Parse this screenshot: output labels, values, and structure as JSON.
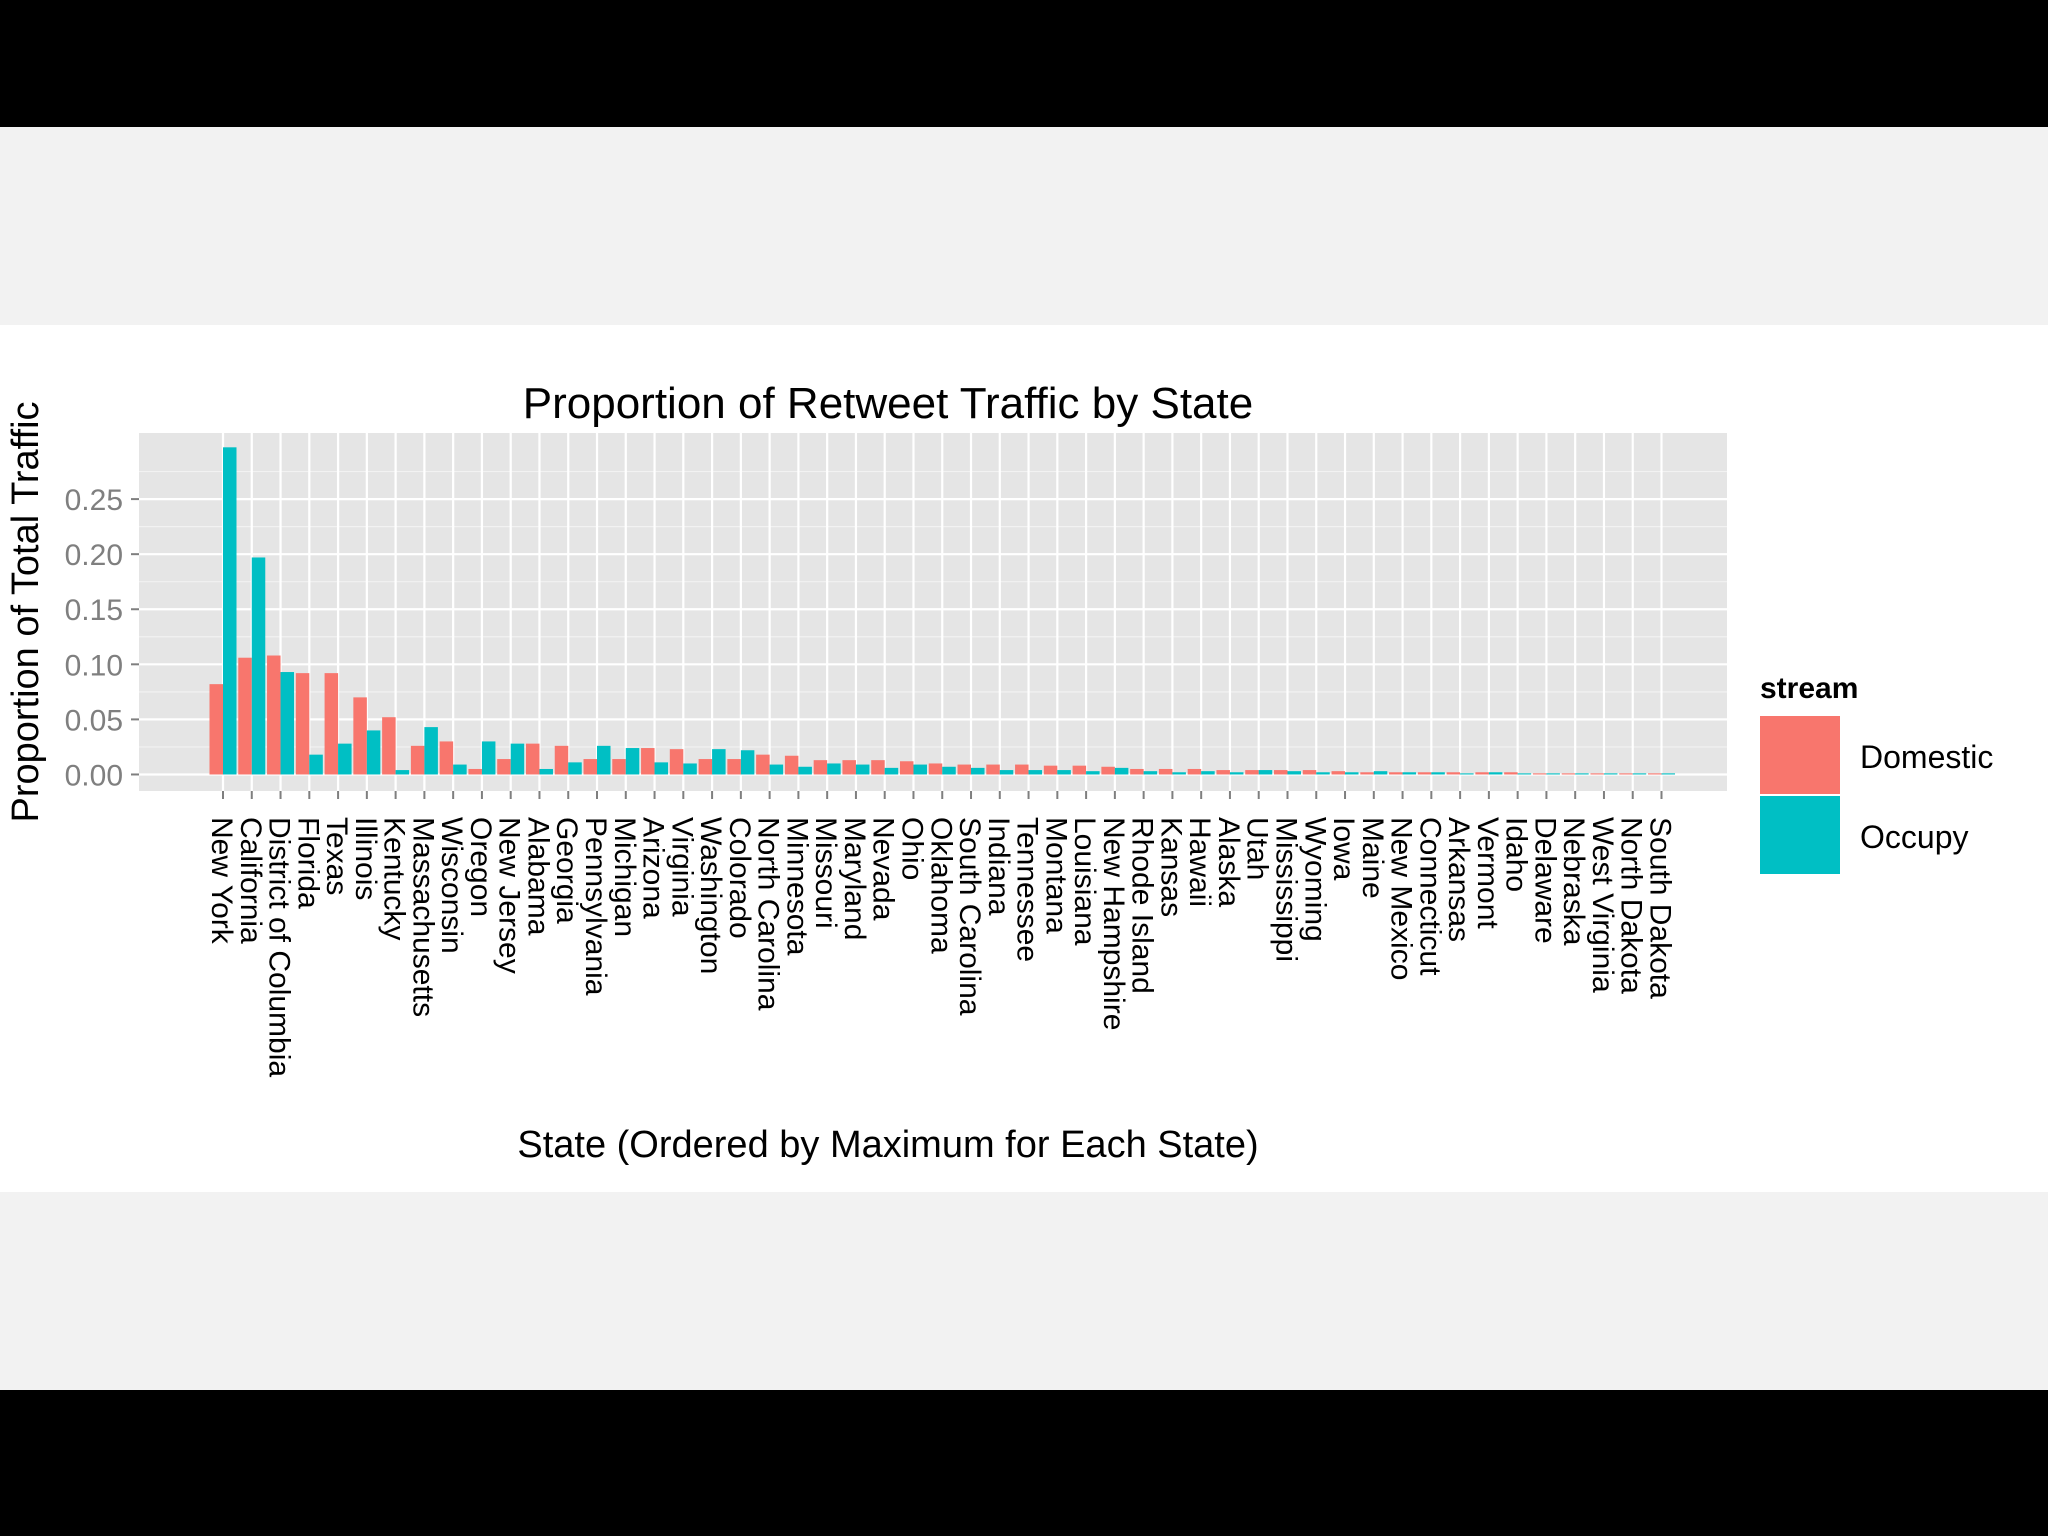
{
  "chart_data": {
    "type": "bar",
    "title": "Proportion of Retweet Traffic by State",
    "xlabel": "State (Ordered by Maximum for Each State)",
    "ylabel": "Proportion of Total Traffic",
    "ylim": [
      -0.015,
      0.31
    ],
    "yticks": [
      "0.00",
      "0.05",
      "0.10",
      "0.15",
      "0.20",
      "0.25"
    ],
    "grid": true,
    "legend": {
      "title": "stream",
      "position": "right"
    },
    "categories": [
      "New York",
      "California",
      "District of Columbia",
      "Florida",
      "Texas",
      "Illinois",
      "Kentucky",
      "Massachusetts",
      "Wisconsin",
      "Oregon",
      "New Jersey",
      "Alabama",
      "Georgia",
      "Pennsylvania",
      "Michigan",
      "Arizona",
      "Virginia",
      "Washington",
      "Colorado",
      "North Carolina",
      "Minnesota",
      "Missouri",
      "Maryland",
      "Nevada",
      "Ohio",
      "Oklahoma",
      "South Carolina",
      "Indiana",
      "Tennessee",
      "Montana",
      "Louisiana",
      "New Hampshire",
      "Rhode Island",
      "Kansas",
      "Hawaii",
      "Alaska",
      "Utah",
      "Mississippi",
      "Wyoming",
      "Iowa",
      "Maine",
      "New Mexico",
      "Connecticut",
      "Arkansas",
      "Vermont",
      "Idaho",
      "Delaware",
      "Nebraska",
      "West Virginia",
      "North Dakota",
      "South Dakota"
    ],
    "series": [
      {
        "name": "Domestic",
        "color": "#f8766d",
        "values": [
          0.082,
          0.106,
          0.108,
          0.092,
          0.092,
          0.07,
          0.052,
          0.026,
          0.03,
          0.005,
          0.014,
          0.028,
          0.026,
          0.014,
          0.014,
          0.024,
          0.023,
          0.014,
          0.014,
          0.018,
          0.017,
          0.013,
          0.013,
          0.013,
          0.012,
          0.01,
          0.009,
          0.009,
          0.009,
          0.008,
          0.008,
          0.007,
          0.005,
          0.005,
          0.005,
          0.004,
          0.004,
          0.004,
          0.004,
          0.003,
          0.002,
          0.002,
          0.002,
          0.002,
          0.002,
          0.002,
          0.001,
          0.001,
          0.001,
          0.001,
          0.001
        ]
      },
      {
        "name": "Occupy",
        "color": "#00bfc4",
        "values": [
          0.297,
          0.197,
          0.093,
          0.018,
          0.028,
          0.04,
          0.004,
          0.043,
          0.009,
          0.03,
          0.028,
          0.005,
          0.011,
          0.026,
          0.024,
          0.011,
          0.01,
          0.023,
          0.022,
          0.009,
          0.007,
          0.01,
          0.009,
          0.006,
          0.009,
          0.007,
          0.006,
          0.004,
          0.004,
          0.004,
          0.003,
          0.006,
          0.003,
          0.002,
          0.003,
          0.002,
          0.004,
          0.003,
          0.002,
          0.002,
          0.003,
          0.002,
          0.002,
          0.001,
          0.002,
          0.001,
          0.001,
          0.001,
          0.001,
          0.001,
          0.001
        ]
      }
    ]
  }
}
